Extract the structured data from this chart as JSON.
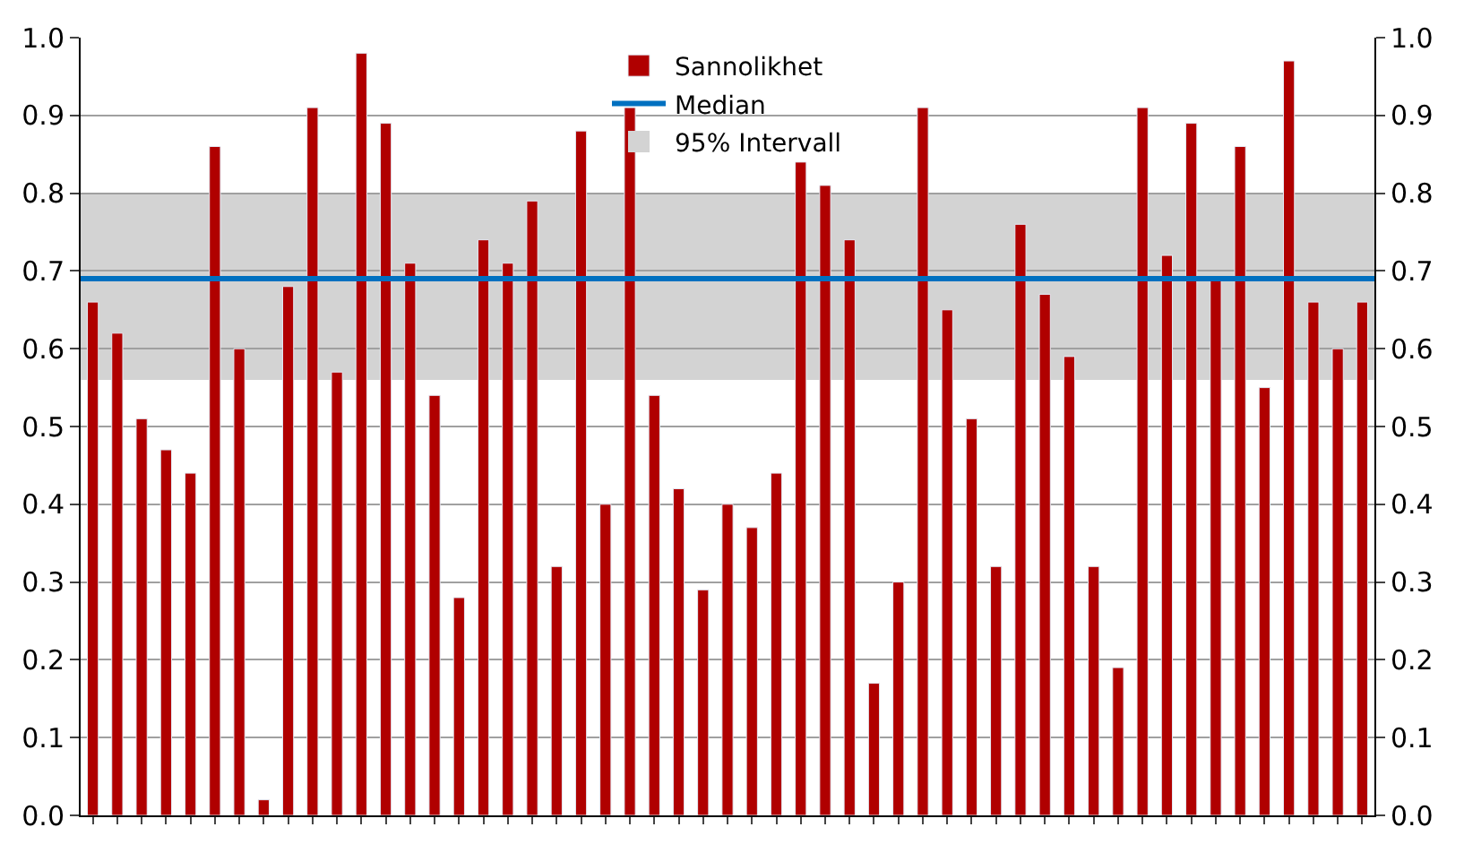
{
  "chart_data": {
    "type": "bar",
    "categories": [
      null,
      null,
      null,
      null,
      null,
      null,
      null,
      null,
      null,
      null,
      null,
      null,
      null,
      null,
      null,
      null,
      null,
      null,
      null,
      null,
      null,
      null,
      null,
      null,
      null,
      null,
      null,
      null,
      null,
      null,
      null,
      null,
      null,
      null,
      null,
      null,
      null,
      null,
      null,
      null,
      null,
      null,
      null,
      null,
      null,
      null,
      null,
      null,
      null,
      null,
      null,
      null,
      null
    ],
    "series": [
      {
        "name": "Sannolikhet",
        "color": "#b00000",
        "values": [
          0.66,
          0.62,
          0.51,
          0.47,
          0.44,
          0.86,
          0.6,
          0.02,
          0.68,
          0.91,
          0.57,
          0.98,
          0.89,
          0.71,
          0.54,
          0.28,
          0.74,
          0.71,
          0.79,
          0.32,
          0.88,
          0.4,
          0.91,
          0.54,
          0.42,
          0.29,
          0.4,
          0.37,
          0.44,
          0.84,
          0.81,
          0.74,
          0.17,
          0.3,
          0.91,
          0.65,
          0.51,
          0.32,
          0.76,
          0.67,
          0.59,
          0.32,
          0.19,
          0.91,
          0.72,
          0.89,
          0.69,
          0.86,
          0.55,
          0.97,
          0.66,
          0.6,
          0.66
        ]
      }
    ],
    "bands": [
      {
        "axis": "y",
        "from": 0.56,
        "to": 0.8,
        "label": "95% Intervall",
        "color": "#d3d3d3"
      }
    ],
    "ref_lines": [
      {
        "axis": "y",
        "value": 0.69,
        "label": "Median",
        "color": "#0070c0",
        "line_style": "solid"
      }
    ],
    "ylim": [
      0,
      1.0
    ],
    "yticks": [
      {
        "value": 0,
        "label": "0.0"
      },
      0.1,
      0.2,
      0.3,
      0.4,
      0.5,
      0.6,
      0.7,
      0.8,
      0.9,
      {
        "value": 1,
        "label": "1.0"
      }
    ],
    "y2lim": [
      0,
      1.0
    ],
    "y2ticks": [
      {
        "value": 0,
        "label": "0.0"
      },
      0.1,
      0.2,
      0.3,
      0.4,
      0.5,
      0.6,
      0.7,
      0.8,
      0.9,
      {
        "value": 1,
        "label": "1.0"
      }
    ],
    "tick_labels": "y",
    "grid": "y",
    "legend": "top"
  }
}
